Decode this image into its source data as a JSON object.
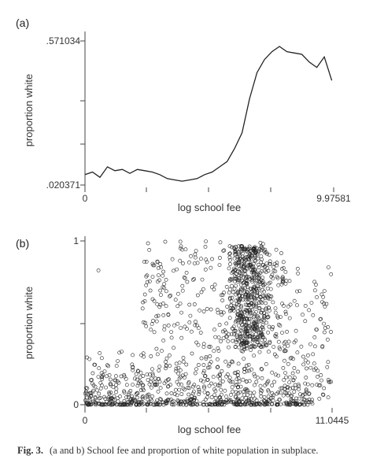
{
  "caption": {
    "number": "Fig. 3.",
    "text": "(a and b) School fee and proportion of white population in subplace."
  },
  "chart_data": [
    {
      "type": "line",
      "panel_label": "(a)",
      "xlabel": "log school fee",
      "ylabel": "proportion white",
      "xlim": [
        0,
        9.97581
      ],
      "ylim": [
        0.020371,
        0.571034
      ],
      "xticks": [
        "0",
        "9.97581"
      ],
      "yticks": [
        ".020371",
        ".571034"
      ],
      "x": [
        0,
        0.3,
        0.6,
        0.9,
        1.2,
        1.5,
        1.8,
        2.1,
        2.4,
        2.7,
        3.0,
        3.3,
        3.6,
        3.9,
        4.2,
        4.5,
        4.8,
        5.1,
        5.4,
        5.7,
        6.0,
        6.3,
        6.6,
        6.9,
        7.2,
        7.5,
        7.8,
        8.1,
        8.4,
        8.7,
        9.0,
        9.3,
        9.6,
        9.9
      ],
      "y": [
        0.06,
        0.07,
        0.05,
        0.09,
        0.075,
        0.08,
        0.065,
        0.08,
        0.075,
        0.07,
        0.06,
        0.045,
        0.04,
        0.035,
        0.04,
        0.045,
        0.06,
        0.07,
        0.09,
        0.11,
        0.16,
        0.22,
        0.35,
        0.45,
        0.5,
        0.53,
        0.55,
        0.53,
        0.525,
        0.52,
        0.49,
        0.47,
        0.51,
        0.42
      ]
    },
    {
      "type": "scatter",
      "panel_label": "(b)",
      "xlabel": "log school fee",
      "ylabel": "proportion white",
      "xlim": [
        0,
        11.0445
      ],
      "ylim": [
        0,
        1
      ],
      "xticks": [
        "0",
        "11.0445"
      ],
      "yticks": [
        "0",
        "1"
      ],
      "marker": "hollow-circle",
      "note": ""
    }
  ]
}
